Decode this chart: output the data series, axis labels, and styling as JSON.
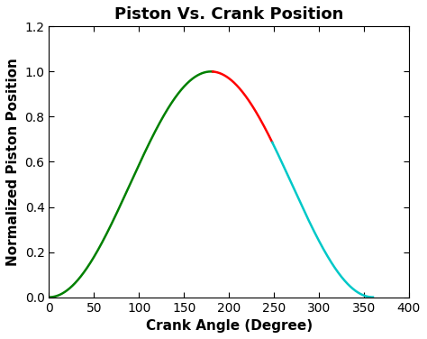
{
  "title": "Piston Vs. Crank Position",
  "xlabel": "Crank Angle (Degree)",
  "ylabel": "Normalized Piston Position",
  "xlim": [
    0,
    400
  ],
  "ylim": [
    0,
    1.2
  ],
  "xticks": [
    0,
    50,
    100,
    150,
    200,
    250,
    300,
    350,
    400
  ],
  "yticks": [
    0,
    0.2,
    0.4,
    0.6,
    0.8,
    1.0,
    1.2
  ],
  "green_range": [
    0,
    182
  ],
  "red_range": [
    182,
    248
  ],
  "cyan_range": [
    248,
    360
  ],
  "color_green": "#008000",
  "color_red": "#ff0000",
  "color_cyan": "#00c8c8",
  "linewidth": 1.8,
  "title_fontsize": 13,
  "label_fontsize": 11,
  "tick_fontsize": 10,
  "background_color": "#ffffff",
  "fig_width": 4.74,
  "fig_height": 3.76,
  "dpi": 100
}
